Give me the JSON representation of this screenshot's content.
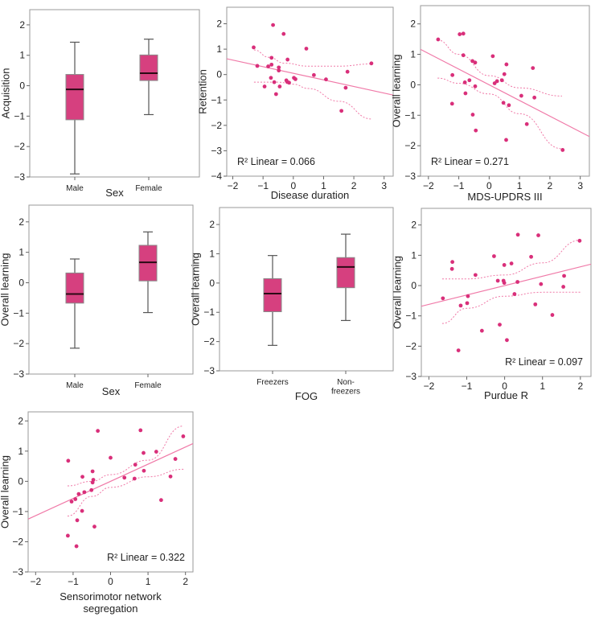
{
  "colors": {
    "box_fill": "#d6407f",
    "box_stroke": "#8a8a8a",
    "median": "#2a0a14",
    "point": "#d92f7a",
    "fit_line": "#f07aa8",
    "ci_line": "#f07aa8"
  },
  "chart_data": [
    {
      "type": "box",
      "ylabel": "Acquisition",
      "xlabel": "Sex",
      "ylim": [
        -3,
        2.5
      ],
      "yticks": [
        2,
        1,
        0,
        -1,
        -2,
        -3
      ],
      "categories": [
        "Male",
        "Female"
      ],
      "boxes": [
        {
          "whisker_low": -2.9,
          "q1": -1.12,
          "median": -0.12,
          "q3": 0.37,
          "whisker_high": 1.43
        },
        {
          "whisker_low": -0.95,
          "q1": 0.17,
          "median": 0.41,
          "q3": 1.01,
          "whisker_high": 1.53
        }
      ]
    },
    {
      "type": "scatter",
      "ylabel": "Retention",
      "xlabel": "Disease duration",
      "xlim": [
        -2.2,
        3.3
      ],
      "ylim": [
        -4,
        2.65
      ],
      "xticks": [
        -2,
        -1,
        0,
        1,
        2,
        3
      ],
      "yticks": [
        2,
        1,
        0,
        -1,
        -2,
        -3,
        -4
      ],
      "annotation": "R² Linear = 0.066",
      "fit": {
        "slope": -0.26,
        "intercept": 0.05
      },
      "ci_upper": [
        [
          -1.3,
          0.97
        ],
        [
          -0.8,
          0.68
        ],
        [
          -0.3,
          0.45
        ],
        [
          0.5,
          0.33
        ],
        [
          1.5,
          0.33
        ],
        [
          2.6,
          0.42
        ]
      ],
      "ci_lower": [
        [
          -1.3,
          -0.3
        ],
        [
          -0.5,
          -0.3
        ],
        [
          0.0,
          -0.38
        ],
        [
          0.5,
          -0.55
        ],
        [
          1.5,
          -1.05
        ],
        [
          2.6,
          -1.75
        ]
      ],
      "points": [
        [
          -1.31,
          1.07
        ],
        [
          -0.67,
          1.95
        ],
        [
          -0.32,
          1.6
        ],
        [
          0.43,
          1.02
        ],
        [
          -1.19,
          0.34
        ],
        [
          -0.83,
          0.32
        ],
        [
          -0.72,
          0.66
        ],
        [
          -0.72,
          0.39
        ],
        [
          -0.48,
          0.28
        ],
        [
          -0.48,
          0.16
        ],
        [
          -0.19,
          0.59
        ],
        [
          -0.74,
          -0.13
        ],
        [
          -0.63,
          -0.3
        ],
        [
          -0.95,
          -0.47
        ],
        [
          -0.57,
          -0.77
        ],
        [
          -0.45,
          -0.47
        ],
        [
          -0.23,
          -0.23
        ],
        [
          -0.2,
          -0.29
        ],
        [
          -0.14,
          -0.32
        ],
        [
          0.02,
          -0.13
        ],
        [
          0.07,
          -0.18
        ],
        [
          0.68,
          -0.02
        ],
        [
          1.08,
          -0.19
        ],
        [
          1.79,
          0.11
        ],
        [
          1.73,
          -0.52
        ],
        [
          1.59,
          -1.43
        ],
        [
          2.58,
          0.44
        ]
      ]
    },
    {
      "type": "scatter",
      "ylabel": "Overall learning",
      "xlabel": "MDS-UPDRS III",
      "xlim": [
        -2.26,
        3.3
      ],
      "ylim": [
        -3,
        2.6
      ],
      "xticks": [
        -2,
        -1,
        0,
        1,
        2,
        3
      ],
      "yticks": [
        2,
        1,
        0,
        -1,
        -2,
        -3
      ],
      "annotation": "R² Linear = 0.271",
      "fit": {
        "slope": -0.515,
        "intercept": 0.0
      },
      "ci_upper": [
        [
          -1.7,
          1.47
        ],
        [
          -1.0,
          1.0
        ],
        [
          0.0,
          0.3
        ],
        [
          1.0,
          -0.1
        ],
        [
          2.4,
          -0.37
        ]
      ],
      "ci_lower": [
        [
          -1.7,
          0.22
        ],
        [
          -1.0,
          0.05
        ],
        [
          0.0,
          -0.3
        ],
        [
          1.0,
          -0.95
        ],
        [
          2.4,
          -2.1
        ]
      ],
      "points": [
        [
          -1.68,
          1.49
        ],
        [
          -0.97,
          1.66
        ],
        [
          -0.85,
          1.68
        ],
        [
          -0.85,
          0.97
        ],
        [
          -0.55,
          0.78
        ],
        [
          -0.46,
          0.73
        ],
        [
          0.12,
          0.94
        ],
        [
          0.57,
          0.67
        ],
        [
          1.44,
          0.55
        ],
        [
          -1.21,
          0.32
        ],
        [
          -0.8,
          0.08
        ],
        [
          -0.65,
          0.15
        ],
        [
          -0.46,
          -0.05
        ],
        [
          -0.78,
          -0.28
        ],
        [
          0.18,
          0.05
        ],
        [
          0.26,
          0.12
        ],
        [
          0.42,
          0.15
        ],
        [
          0.5,
          0.35
        ],
        [
          1.06,
          -0.36
        ],
        [
          1.49,
          -0.42
        ],
        [
          -1.22,
          -0.62
        ],
        [
          0.47,
          -0.59
        ],
        [
          0.65,
          -0.67
        ],
        [
          -0.54,
          -0.98
        ],
        [
          -0.44,
          -1.5
        ],
        [
          1.24,
          -1.29
        ],
        [
          0.56,
          -1.81
        ],
        [
          2.42,
          -2.14
        ]
      ]
    },
    {
      "type": "box",
      "ylabel": "Overall learning",
      "xlabel": "Sex",
      "ylim": [
        -3,
        2.55
      ],
      "yticks": [
        2,
        1,
        0,
        -1,
        -2,
        -3
      ],
      "categories": [
        "Male",
        "Female"
      ],
      "boxes": [
        {
          "whisker_low": -2.15,
          "q1": -0.67,
          "median": -0.37,
          "q3": 0.32,
          "whisker_high": 0.78
        },
        {
          "whisker_low": -0.98,
          "q1": 0.06,
          "median": 0.67,
          "q3": 1.23,
          "whisker_high": 1.67
        }
      ]
    },
    {
      "type": "box",
      "ylabel": "Overall learning",
      "xlabel": "FOG",
      "ylim": [
        -3,
        2.58
      ],
      "yticks": [
        2,
        1,
        0,
        -1,
        -2,
        -3
      ],
      "categories": [
        "Freezers",
        "Non-\nfreezers"
      ],
      "boxes": [
        {
          "whisker_low": -2.13,
          "q1": -0.98,
          "median": -0.36,
          "q3": 0.15,
          "whisker_high": 0.94
        },
        {
          "whisker_low": -1.28,
          "q1": -0.16,
          "median": 0.55,
          "q3": 0.87,
          "whisker_high": 1.67
        }
      ]
    },
    {
      "type": "scatter",
      "ylabel": "Overall learning",
      "xlabel": "Purdue R",
      "xlim": [
        -2.2,
        2.28
      ],
      "ylim": [
        -3,
        2.55
      ],
      "xticks": [
        -2,
        -1,
        0,
        1,
        2
      ],
      "yticks": [
        2,
        1,
        0,
        -1,
        -2,
        -3
      ],
      "annotation": "R² Linear = 0.097",
      "fit": {
        "slope": 0.31,
        "intercept": 0.0
      },
      "ci_upper": [
        [
          -1.65,
          0.22
        ],
        [
          -1.0,
          0.22
        ],
        [
          0.0,
          0.35
        ],
        [
          1.0,
          0.75
        ],
        [
          2.0,
          1.5
        ]
      ],
      "ci_lower": [
        [
          -1.65,
          -1.25
        ],
        [
          -1.0,
          -0.75
        ],
        [
          0.0,
          -0.35
        ],
        [
          1.0,
          -0.22
        ],
        [
          2.0,
          -0.22
        ]
      ],
      "points": [
        [
          -1.63,
          -0.42
        ],
        [
          -1.38,
          0.78
        ],
        [
          -1.39,
          0.55
        ],
        [
          -1.16,
          -0.66
        ],
        [
          -1.22,
          -2.14
        ],
        [
          -0.97,
          -0.35
        ],
        [
          -0.99,
          -0.58
        ],
        [
          -0.77,
          0.35
        ],
        [
          -0.6,
          -1.49
        ],
        [
          -0.28,
          0.97
        ],
        [
          -0.18,
          0.16
        ],
        [
          -0.13,
          -1.29
        ],
        [
          -0.03,
          0.16
        ],
        [
          -0.01,
          0.09
        ],
        [
          -0.01,
          0.68
        ],
        [
          0.06,
          -1.8
        ],
        [
          0.18,
          0.73
        ],
        [
          0.26,
          -0.28
        ],
        [
          0.34,
          0.12
        ],
        [
          0.35,
          1.68
        ],
        [
          0.7,
          0.95
        ],
        [
          0.81,
          -0.62
        ],
        [
          0.89,
          1.66
        ],
        [
          0.96,
          0.05
        ],
        [
          1.26,
          -0.97
        ],
        [
          1.55,
          -0.04
        ],
        [
          1.57,
          0.32
        ],
        [
          1.98,
          1.48
        ]
      ]
    },
    {
      "type": "scatter",
      "ylabel": "Overall learning",
      "xlabel": "Sensorimotor network\nsegregation",
      "xlim": [
        -2.2,
        2.2
      ],
      "ylim": [
        -3,
        2.3
      ],
      "xticks": [
        -2,
        -1,
        0,
        1,
        2
      ],
      "yticks": [
        2,
        1,
        0,
        -1,
        -2,
        -3
      ],
      "annotation": "R² Linear = 0.322",
      "fit": {
        "slope": 0.568,
        "intercept": 0.0
      },
      "ci_upper": [
        [
          -1.15,
          -0.15
        ],
        [
          -0.5,
          0.0
        ],
        [
          0.0,
          0.22
        ],
        [
          1.0,
          0.7
        ],
        [
          1.95,
          1.83
        ]
      ],
      "ci_lower": [
        [
          -1.15,
          -1.15
        ],
        [
          -0.5,
          -0.5
        ],
        [
          0.0,
          -0.2
        ],
        [
          1.0,
          0.15
        ],
        [
          1.95,
          0.4
        ]
      ],
      "points": [
        [
          -1.13,
          0.68
        ],
        [
          -1.14,
          -1.8
        ],
        [
          -1.04,
          -0.67
        ],
        [
          -0.94,
          -0.59
        ],
        [
          -0.91,
          -2.15
        ],
        [
          -0.89,
          -1.29
        ],
        [
          -0.85,
          -0.42
        ],
        [
          -0.75,
          0.15
        ],
        [
          -0.76,
          -0.98
        ],
        [
          -0.7,
          -0.36
        ],
        [
          -0.51,
          -0.29
        ],
        [
          -0.48,
          0.33
        ],
        [
          -0.46,
          0.05
        ],
        [
          -0.48,
          -0.04
        ],
        [
          -0.43,
          -1.5
        ],
        [
          -0.34,
          1.67
        ],
        [
          0.0,
          0.78
        ],
        [
          0.37,
          0.12
        ],
        [
          0.64,
          0.09
        ],
        [
          0.66,
          0.55
        ],
        [
          0.8,
          1.69
        ],
        [
          0.89,
          0.35
        ],
        [
          0.88,
          0.94
        ],
        [
          1.22,
          0.98
        ],
        [
          1.35,
          -0.62
        ],
        [
          1.6,
          0.16
        ],
        [
          1.73,
          0.74
        ],
        [
          1.94,
          1.49
        ]
      ]
    }
  ]
}
